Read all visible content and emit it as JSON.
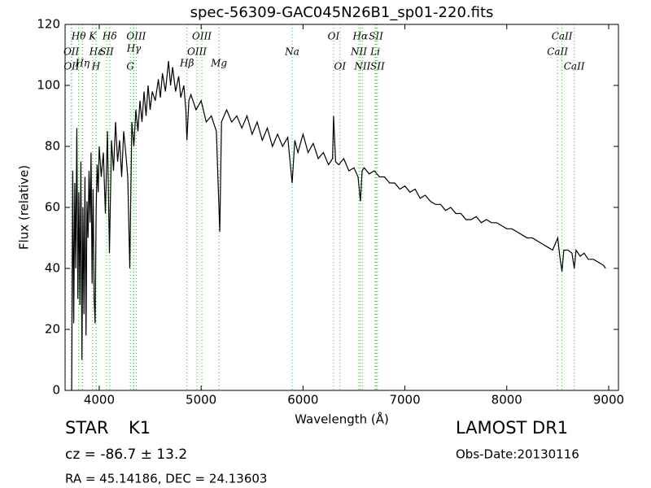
{
  "chart_data": {
    "type": "line",
    "title": "spec-56309-GAC045N26B1_sp01-220.fits",
    "xlabel": "Wavelength (Å)",
    "ylabel": "Flux (relative)",
    "xlim": [
      3665,
      9096
    ],
    "ylim": [
      0,
      120
    ],
    "xticks": [
      4000,
      5000,
      6000,
      7000,
      8000,
      9000
    ],
    "yticks": [
      0,
      20,
      40,
      60,
      80,
      100,
      120
    ],
    "color": "#000000",
    "line_color": "#44aa44",
    "lines": [
      {
        "label": "Hθ",
        "wavelength": 3798
      },
      {
        "label": "K",
        "wavelength": 3934
      },
      {
        "label": "Hδ",
        "wavelength": 4102
      },
      {
        "label": "OIII",
        "wavelength": 4363
      },
      {
        "label": "OIII",
        "wavelength": 5007
      },
      {
        "label": "OI",
        "wavelength": 6300
      },
      {
        "label": "Hα",
        "wavelength": 6563
      },
      {
        "label": "SII",
        "wavelength": 6716
      },
      {
        "label": "CaII",
        "wavelength": 8542
      },
      {
        "label": "OII",
        "wavelength": 3726
      },
      {
        "label": "Hε",
        "wavelength": 3970
      },
      {
        "label": "SII",
        "wavelength": 4072
      },
      {
        "label": "Hγ",
        "wavelength": 4340
      },
      {
        "label": "OIII",
        "wavelength": 4959
      },
      {
        "label": "Na",
        "wavelength": 5893
      },
      {
        "label": "NII",
        "wavelength": 6548
      },
      {
        "label": "Li",
        "wavelength": 6708
      },
      {
        "label": "CaII",
        "wavelength": 8498
      },
      {
        "label": "OII",
        "wavelength": 3729
      },
      {
        "label": "Hη",
        "wavelength": 3835
      },
      {
        "label": "H",
        "wavelength": 3968
      },
      {
        "label": "G",
        "wavelength": 4305
      },
      {
        "label": "Hβ",
        "wavelength": 4861
      },
      {
        "label": "Mg",
        "wavelength": 5175
      },
      {
        "label": "OI",
        "wavelength": 6363
      },
      {
        "label": "NII",
        "wavelength": 6583
      },
      {
        "label": "SII",
        "wavelength": 6731
      },
      {
        "label": "CaII",
        "wavelength": 8662
      }
    ],
    "x": [
      3730,
      3740,
      3750,
      3760,
      3770,
      3780,
      3790,
      3800,
      3810,
      3820,
      3830,
      3840,
      3850,
      3860,
      3870,
      3880,
      3890,
      3900,
      3910,
      3920,
      3930,
      3940,
      3950,
      3960,
      3970,
      3980,
      3990,
      4000,
      4020,
      4040,
      4060,
      4080,
      4100,
      4120,
      4140,
      4160,
      4180,
      4200,
      4220,
      4240,
      4260,
      4280,
      4300,
      4320,
      4340,
      4360,
      4380,
      4400,
      4420,
      4440,
      4460,
      4480,
      4500,
      4520,
      4550,
      4580,
      4600,
      4620,
      4650,
      4680,
      4700,
      4720,
      4750,
      4780,
      4800,
      4830,
      4850,
      4861,
      4880,
      4900,
      4950,
      5000,
      5050,
      5100,
      5150,
      5170,
      5183,
      5200,
      5250,
      5300,
      5350,
      5400,
      5450,
      5500,
      5550,
      5600,
      5650,
      5700,
      5750,
      5800,
      5850,
      5893,
      5920,
      5950,
      6000,
      6050,
      6100,
      6150,
      6200,
      6250,
      6290,
      6300,
      6320,
      6350,
      6400,
      6450,
      6500,
      6540,
      6563,
      6580,
      6600,
      6650,
      6700,
      6750,
      6800,
      6850,
      6900,
      6950,
      7000,
      7050,
      7100,
      7150,
      7200,
      7250,
      7300,
      7350,
      7400,
      7450,
      7500,
      7550,
      7600,
      7650,
      7700,
      7750,
      7800,
      7850,
      7900,
      7950,
      8000,
      8050,
      8100,
      8150,
      8200,
      8250,
      8300,
      8350,
      8400,
      8450,
      8500,
      8520,
      8542,
      8560,
      8600,
      8640,
      8662,
      8680,
      8720,
      8760,
      8800,
      8850,
      8900,
      8950,
      8970
    ],
    "values": [
      0,
      72,
      22,
      68,
      40,
      86,
      30,
      65,
      28,
      75,
      10,
      60,
      25,
      70,
      18,
      62,
      50,
      72,
      55,
      78,
      35,
      66,
      30,
      22,
      60,
      74,
      65,
      80,
      70,
      78,
      58,
      85,
      45,
      82,
      72,
      88,
      75,
      82,
      70,
      85,
      78,
      70,
      40,
      88,
      80,
      92,
      85,
      95,
      88,
      98,
      90,
      100,
      92,
      98,
      95,
      102,
      96,
      104,
      98,
      108,
      100,
      106,
      98,
      103,
      96,
      100,
      92,
      82,
      95,
      97,
      92,
      95,
      88,
      90,
      85,
      65,
      52,
      88,
      92,
      88,
      90,
      86,
      90,
      84,
      88,
      82,
      86,
      80,
      84,
      80,
      83,
      68,
      82,
      78,
      84,
      78,
      81,
      76,
      78,
      74,
      76,
      90,
      75,
      74,
      76,
      72,
      73,
      70,
      62,
      72,
      73,
      71,
      72,
      70,
      70,
      68,
      68,
      66,
      67,
      65,
      66,
      63,
      64,
      62,
      61,
      61,
      59,
      60,
      58,
      58,
      56,
      56,
      57,
      55,
      56,
      55,
      55,
      54,
      53,
      53,
      52,
      51,
      50,
      50,
      49,
      48,
      47,
      46,
      50,
      44,
      39,
      46,
      46,
      45,
      40,
      46,
      44,
      45,
      43,
      43,
      42,
      41,
      40
    ]
  },
  "footer": {
    "object": "STAR",
    "subclass": "K1",
    "cz": "cz = -86.7 ± 13.2",
    "coords": "RA = 45.14186, DEC = 24.13603",
    "survey": "LAMOST DR1",
    "date": "Obs-Date:20130116"
  }
}
